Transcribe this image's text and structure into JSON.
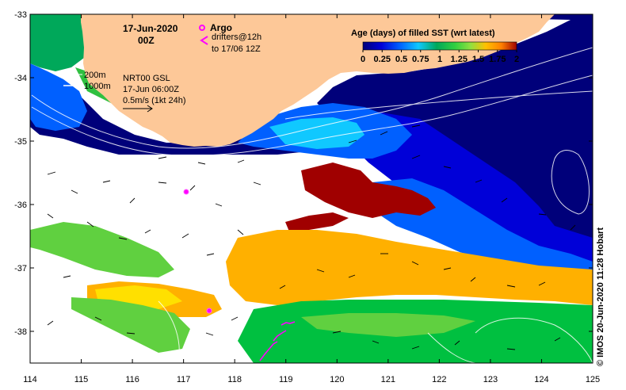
{
  "header": {
    "date": "17-Jun-2020",
    "time": "00Z"
  },
  "legend": {
    "argo_label": "Argo",
    "drifters_line1": "drifters@12h",
    "drifters_line2": "to 17/06 12Z",
    "argo_color": "#ff00ff",
    "drifter_color": "#ff00ff"
  },
  "annotation": {
    "contour1": "200m",
    "contour2": "1000m",
    "product": "NRT00 GSL",
    "product_time": "17-Jun 06:00Z",
    "scale": "0.5m/s (1kt 24h)"
  },
  "colorbar": {
    "title": "Age (days) of filled SST (wrt latest)",
    "tick_labels": [
      "0",
      "0.25",
      "0.5",
      "0.75",
      "1",
      "1.25",
      "1.5",
      "1.75",
      "2"
    ],
    "colors": [
      "#00007a",
      "#0000d8",
      "#0060ff",
      "#10c8ff",
      "#00a85a",
      "#30d040",
      "#90e040",
      "#ffc000",
      "#ff8000",
      "#a00000"
    ]
  },
  "axes": {
    "lon_ticks": [
      "114",
      "115",
      "116",
      "117",
      "118",
      "119",
      "120",
      "121",
      "122",
      "123",
      "124",
      "125"
    ],
    "lat_ticks": [
      "-33",
      "-34",
      "-35",
      "-36",
      "-37",
      "-38"
    ],
    "lon_range": [
      114,
      125
    ],
    "lat_range": [
      -38.5,
      -33
    ]
  },
  "colors": {
    "land": "#fdc898",
    "no_data": "#ffffff"
  },
  "argo_floats": [
    {
      "lon": 117.05,
      "lat": -35.8
    },
    {
      "lon": 117.5,
      "lat": -37.68
    }
  ],
  "credit": "© IMOS 20-Jun-2020 11:28 Hobart"
}
